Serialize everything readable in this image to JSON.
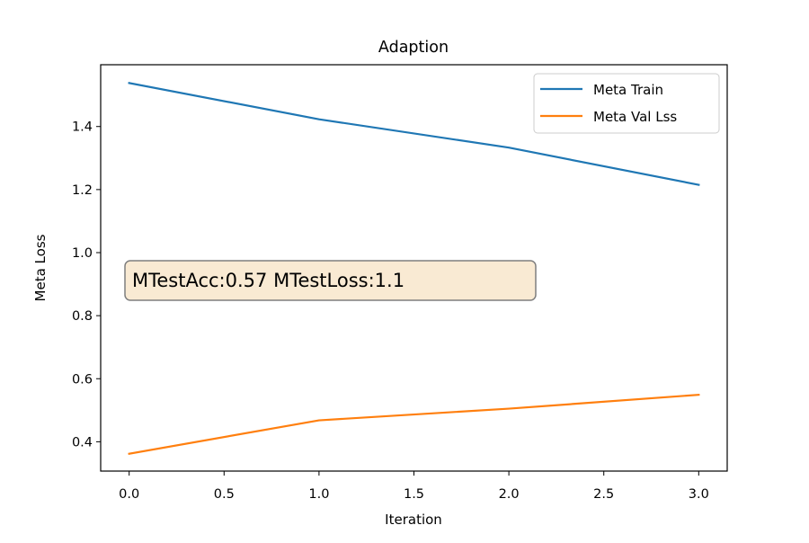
{
  "chart_data": {
    "type": "line",
    "title": "Adaption",
    "xlabel": "Iteration",
    "ylabel": "Meta Loss",
    "xlim": [
      -0.15,
      3.15
    ],
    "ylim": [
      0.307,
      1.596
    ],
    "xticks": [
      0.0,
      0.5,
      1.0,
      1.5,
      2.0,
      2.5,
      3.0
    ],
    "xtick_labels": [
      "0.0",
      "0.5",
      "1.0",
      "1.5",
      "2.0",
      "2.5",
      "3.0"
    ],
    "yticks": [
      0.4,
      0.6,
      0.8,
      1.0,
      1.2,
      1.4
    ],
    "ytick_labels": [
      "0.4",
      "0.6",
      "0.8",
      "1.0",
      "1.2",
      "1.4"
    ],
    "grid": false,
    "legend_position": "top-right",
    "x": [
      0,
      1,
      2,
      3
    ],
    "series": [
      {
        "name": "Meta Train",
        "color": "#1f77b4",
        "values": [
          1.538,
          1.423,
          1.333,
          1.215
        ]
      },
      {
        "name": "Meta Val Lss",
        "color": "#ff7f0e",
        "values": [
          0.362,
          0.468,
          0.505,
          0.549
        ]
      }
    ],
    "annotation": {
      "text": "MTestAcc:0.57  MTestLoss:1.1",
      "position": "center-left",
      "box_facecolor": "#f9ead3",
      "box_edgecolor": "#7f7f7f"
    }
  }
}
